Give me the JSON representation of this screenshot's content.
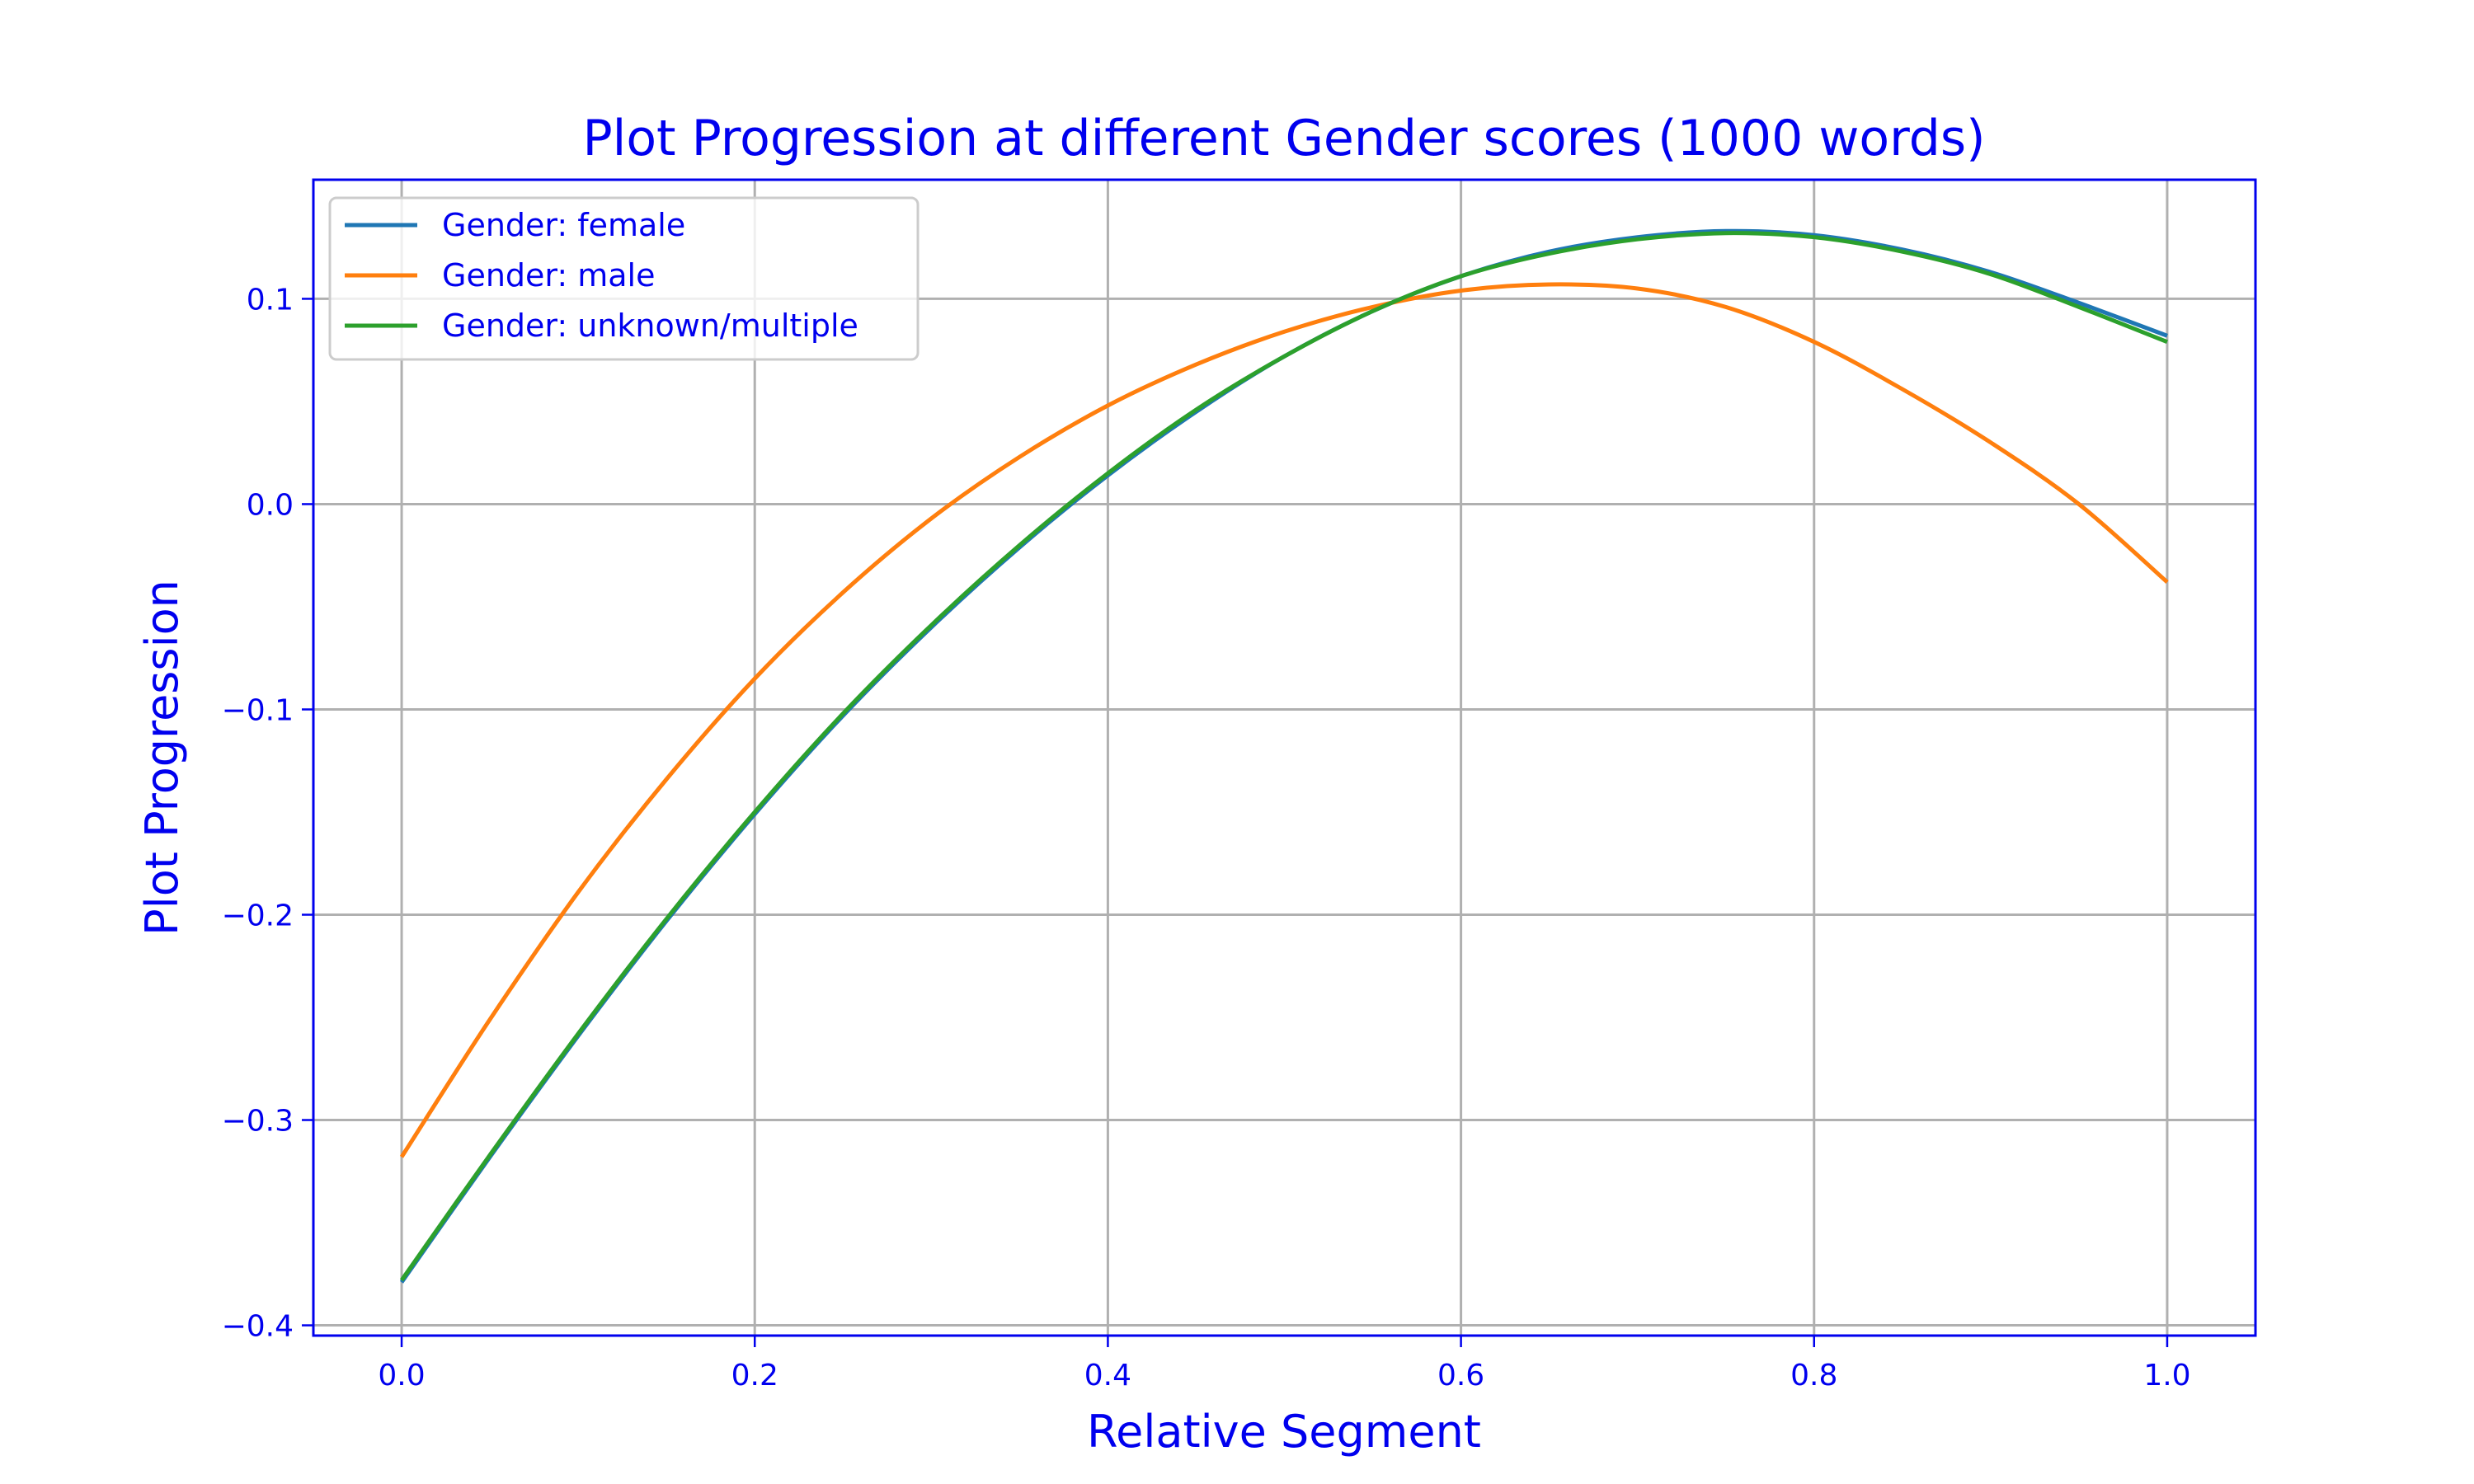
{
  "chart_data": {
    "type": "line",
    "title": "Plot Progression at different Gender scores (1000 words)",
    "xlabel": "Relative Segment",
    "ylabel": "Plot Progression",
    "xlim": [
      -0.05,
      1.05
    ],
    "ylim": [
      -0.405,
      0.158
    ],
    "grid": true,
    "legend_position": "top-left",
    "x_ticks": [
      {
        "value": 0.0,
        "label": "0.0"
      },
      {
        "value": 0.2,
        "label": "0.2"
      },
      {
        "value": 0.4,
        "label": "0.4"
      },
      {
        "value": 0.6,
        "label": "0.6"
      },
      {
        "value": 0.8,
        "label": "0.8"
      },
      {
        "value": 1.0,
        "label": "1.0"
      }
    ],
    "y_ticks": [
      {
        "value": 0.1,
        "label": "0.1"
      },
      {
        "value": 0.0,
        "label": "0.0"
      },
      {
        "value": -0.1,
        "label": "−0.1"
      },
      {
        "value": -0.2,
        "label": "−0.2"
      },
      {
        "value": -0.3,
        "label": "−0.3"
      },
      {
        "value": -0.4,
        "label": "−0.4"
      }
    ],
    "x": [
      0.0,
      0.05,
      0.1,
      0.15,
      0.2,
      0.25,
      0.3,
      0.35,
      0.4,
      0.45,
      0.5,
      0.55,
      0.6,
      0.65,
      0.7,
      0.75,
      0.8,
      0.85,
      0.9,
      0.95,
      1.0
    ],
    "series": [
      {
        "name": "Gender: female",
        "color": "#1f77b4",
        "values": [
          -0.379,
          -0.318,
          -0.259,
          -0.203,
          -0.151,
          -0.103,
          -0.06,
          -0.021,
          0.014,
          0.045,
          0.072,
          0.094,
          0.111,
          0.123,
          0.13,
          0.133,
          0.131,
          0.124,
          0.113,
          0.098,
          0.082
        ]
      },
      {
        "name": "Gender: male",
        "color": "#ff7f0e",
        "values": [
          -0.318,
          -0.251,
          -0.189,
          -0.134,
          -0.085,
          -0.043,
          -0.007,
          0.023,
          0.048,
          0.068,
          0.084,
          0.096,
          0.104,
          0.107,
          0.105,
          0.096,
          0.079,
          0.056,
          0.03,
          0.0,
          -0.038
        ]
      },
      {
        "name": "Gender: unknown/multiple",
        "color": "#2ca02c",
        "values": [
          -0.378,
          -0.317,
          -0.258,
          -0.202,
          -0.15,
          -0.102,
          -0.059,
          -0.02,
          0.015,
          0.046,
          0.072,
          0.094,
          0.111,
          0.122,
          0.129,
          0.132,
          0.13,
          0.123,
          0.112,
          0.096,
          0.079
        ]
      }
    ]
  }
}
